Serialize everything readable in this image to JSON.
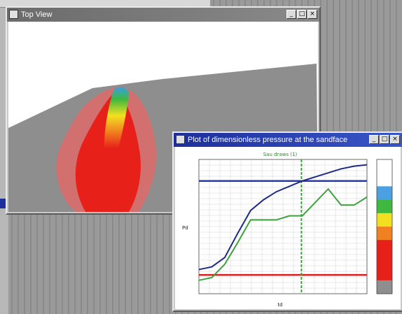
{
  "colors": {
    "desktop": "#8f8f8f",
    "title_active": "#1d2f9a",
    "title_inactive": "#6b6b6b",
    "terrain": "#8e8e8e",
    "plume_red": "#e8201a",
    "curve_blue": "#1e2a86",
    "curve_green": "#3aa33a",
    "hline_blue": "#2a3aa8",
    "hline_red": "#d42020"
  },
  "windows": {
    "top_view": {
      "title": "Top View",
      "buttons": [
        "minimize",
        "maximize",
        "close"
      ]
    },
    "plot": {
      "title": "Plot of dimensionless pressure at the sandface",
      "buttons": [
        "minimize",
        "maximize",
        "close"
      ]
    }
  },
  "chart_data": {
    "type": "line",
    "title": "Sau draws (1)",
    "xlabel": "td",
    "ylabel": "Pd",
    "series": [
      {
        "color": "#1e2a86",
        "y": [
          0.18,
          0.2,
          0.27,
          0.45,
          0.62,
          0.7,
          0.76,
          0.8,
          0.84,
          0.87,
          0.9,
          0.93,
          0.95,
          0.96
        ]
      },
      {
        "color": "#3aa33a",
        "y": [
          0.1,
          0.12,
          0.22,
          0.38,
          0.55,
          0.55,
          0.55,
          0.58,
          0.58,
          0.68,
          0.78,
          0.66,
          0.66,
          0.72
        ]
      }
    ],
    "hlines": [
      {
        "color": "#2a3aa8",
        "y": 0.84
      },
      {
        "color": "#d42020",
        "y": 0.14
      }
    ],
    "vline": {
      "color": "#3aa33a",
      "x": 0.61
    },
    "colorbar": [
      "#ffffff",
      "#ffffff",
      "#4aa0e0",
      "#3fb83f",
      "#f2e020",
      "#f08020",
      "#e8201a",
      "#e8201a",
      "#e8201a",
      "#8e8e8e"
    ],
    "grid": true
  }
}
